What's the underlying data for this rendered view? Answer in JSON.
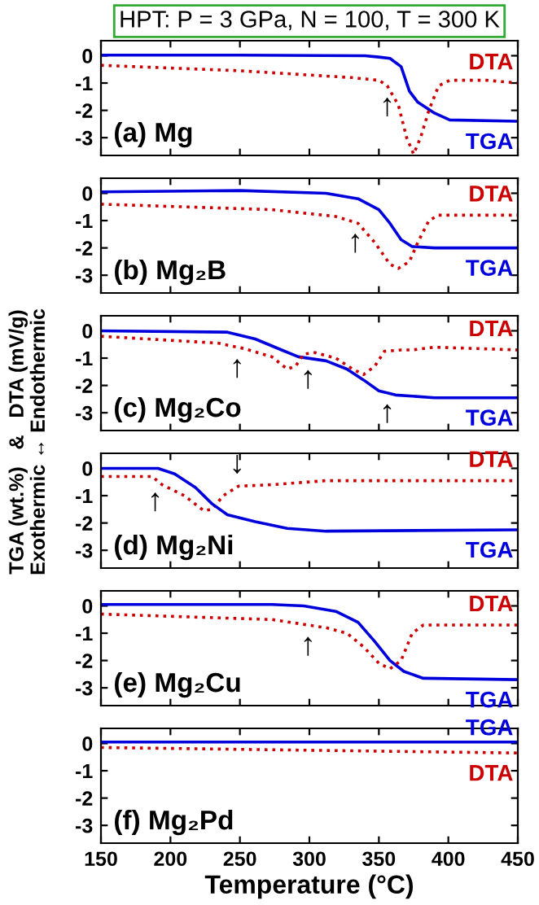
{
  "chart_data": [
    {
      "type": "line",
      "title": "HPT: P = 3 GPa, N = 100, T = 300 K",
      "xlim": [
        150,
        450
      ],
      "xticks": [
        150,
        200,
        250,
        300,
        350,
        400,
        450
      ],
      "ylim": [
        -3.65,
        0.55
      ],
      "yticks": [
        0,
        {
          "value": -1,
          "label": "-1"
        },
        {
          "value": -2,
          "label": "-2"
        },
        {
          "value": -3,
          "label": "-3"
        }
      ],
      "tick_labels": "y",
      "annotations": [
        "(a) Mg",
        {
          "text": "↑",
          "x": 356,
          "y": -1.1
        }
      ],
      "series": [
        {
          "name": "TGA",
          "color": "#0000dd",
          "line_style": "solid",
          "x": [
            150,
            250,
            340,
            350,
            358,
            366,
            372,
            378,
            390,
            401,
            450
          ],
          "values": [
            0.02,
            0.02,
            0.0,
            -0.05,
            -0.1,
            -0.4,
            -1.3,
            -1.7,
            -2.1,
            -2.35,
            -2.4
          ]
        },
        {
          "name": "DTA",
          "color": "#cc0000",
          "line_style": "dotted",
          "x": [
            150,
            250,
            330,
            350,
            356,
            364,
            370,
            375,
            380,
            386,
            393,
            401,
            428,
            450
          ],
          "values": [
            -0.35,
            -0.55,
            -0.8,
            -0.9,
            -1.1,
            -1.8,
            -3.0,
            -3.6,
            -3.0,
            -2.0,
            -1.1,
            -0.9,
            -0.9,
            -1.0
          ]
        }
      ]
    },
    {
      "type": "line",
      "xlim": [
        150,
        450
      ],
      "xticks": [
        150,
        200,
        250,
        300,
        350,
        400,
        450
      ],
      "ylim": [
        -3.65,
        0.55
      ],
      "yticks": [
        0,
        {
          "value": -1,
          "label": "-1"
        },
        {
          "value": -2,
          "label": "-2"
        },
        {
          "value": -3,
          "label": "-3"
        }
      ],
      "tick_labels": "y",
      "annotations": [
        "(b) Mg₂B",
        {
          "text": "↑",
          "x": 333,
          "y": -1.05
        }
      ],
      "series": [
        {
          "name": "TGA",
          "color": "#0000dd",
          "line_style": "solid",
          "x": [
            150,
            250,
            312,
            335,
            350,
            358,
            366,
            374,
            390,
            450
          ],
          "values": [
            0.05,
            0.1,
            0.0,
            -0.2,
            -0.6,
            -1.1,
            -1.7,
            -1.95,
            -2.0,
            -2.0
          ]
        },
        {
          "name": "DTA",
          "color": "#cc0000",
          "line_style": "dotted",
          "x": [
            150,
            273,
            319,
            335,
            347,
            358,
            364,
            372,
            378,
            386,
            393,
            450
          ],
          "values": [
            -0.4,
            -0.6,
            -0.85,
            -1.1,
            -1.8,
            -2.6,
            -2.75,
            -2.5,
            -1.8,
            -1.0,
            -0.8,
            -0.8
          ]
        }
      ]
    },
    {
      "type": "line",
      "xlim": [
        150,
        450
      ],
      "xticks": [
        150,
        200,
        250,
        300,
        350,
        400,
        450
      ],
      "ylim": [
        -3.65,
        0.55
      ],
      "yticks": [
        0,
        {
          "value": -1,
          "label": "-1"
        },
        {
          "value": -2,
          "label": "-2"
        },
        {
          "value": -3,
          "label": "-3"
        }
      ],
      "tick_labels": "y",
      "ylabel": "TGA (wt.%)   &   DTA (mV/g)\nExothermic ↔ Endothermic",
      "annotations": [
        "(c) Mg₂Co",
        {
          "text": "↑",
          "x": 248,
          "y": -0.6
        },
        {
          "text": "↑",
          "x": 299,
          "y": -1.0
        },
        {
          "text": "↑",
          "x": 356,
          "y": -2.25
        }
      ],
      "series": [
        {
          "name": "TGA",
          "color": "#0000dd",
          "line_style": "solid",
          "x": [
            150,
            241,
            261,
            280,
            292,
            312,
            327,
            339,
            350,
            362,
            390,
            450
          ],
          "values": [
            0.0,
            -0.05,
            -0.3,
            -0.7,
            -0.95,
            -1.1,
            -1.4,
            -1.8,
            -2.2,
            -2.35,
            -2.45,
            -2.45
          ]
        },
        {
          "name": "DTA",
          "color": "#cc0000",
          "line_style": "dotted",
          "x": [
            150,
            234,
            253,
            273,
            284,
            290,
            296,
            304,
            319,
            331,
            339,
            347,
            354,
            366,
            374,
            390,
            450
          ],
          "values": [
            -0.2,
            -0.45,
            -0.65,
            -0.95,
            -1.4,
            -1.3,
            -0.85,
            -0.8,
            -1.0,
            -1.4,
            -1.6,
            -1.3,
            -0.75,
            -0.7,
            -0.7,
            -0.6,
            -0.7
          ]
        }
      ]
    },
    {
      "type": "line",
      "xlim": [
        150,
        450
      ],
      "xticks": [
        150,
        200,
        250,
        300,
        350,
        400,
        450
      ],
      "ylim": [
        -3.65,
        0.55
      ],
      "yticks": [
        0,
        {
          "value": -1,
          "label": "-1"
        },
        {
          "value": -2,
          "label": "-2"
        },
        {
          "value": -3,
          "label": "-3"
        }
      ],
      "tick_labels": "y",
      "annotations": [
        "(d) Mg₂Ni",
        {
          "text": "↑",
          "x": 189,
          "y": -0.45
        },
        {
          "text": "↓",
          "x": 248,
          "y": -0.65
        }
      ],
      "series": [
        {
          "name": "DTA",
          "color": "#cc0000",
          "line_style": "dotted",
          "x": [
            150,
            187,
            194,
            210,
            224,
            230,
            238,
            249,
            273,
            312,
            450
          ],
          "values": [
            -0.3,
            -0.3,
            -0.6,
            -1.0,
            -1.55,
            -1.5,
            -1.0,
            -0.65,
            -0.6,
            -0.45,
            -0.45
          ]
        },
        {
          "name": "TGA",
          "color": "#0000dd",
          "line_style": "solid",
          "x": [
            150,
            191,
            203,
            218,
            230,
            241,
            261,
            284,
            312,
            450
          ],
          "values": [
            0.0,
            0.0,
            -0.2,
            -0.7,
            -1.3,
            -1.7,
            -1.95,
            -2.2,
            -2.3,
            -2.25
          ]
        }
      ]
    },
    {
      "type": "line",
      "xlim": [
        150,
        450
      ],
      "xticks": [
        150,
        200,
        250,
        300,
        350,
        400,
        450
      ],
      "ylim": [
        -3.65,
        0.55
      ],
      "yticks": [
        0,
        {
          "value": -1,
          "label": "-1"
        },
        {
          "value": -2,
          "label": "-2"
        },
        {
          "value": -3,
          "label": "-3"
        }
      ],
      "tick_labels": "y",
      "annotations": [
        "(e) Mg₂Cu",
        {
          "text": "↑",
          "x": 299,
          "y": -0.7
        }
      ],
      "series": [
        {
          "name": "TGA",
          "color": "#0000dd",
          "line_style": "solid",
          "x": [
            150,
            273,
            296,
            319,
            335,
            347,
            358,
            368,
            382,
            450
          ],
          "values": [
            0.05,
            0.05,
            0.0,
            -0.2,
            -0.6,
            -1.3,
            -2.0,
            -2.4,
            -2.65,
            -2.7
          ]
        },
        {
          "name": "DTA",
          "color": "#cc0000",
          "line_style": "dotted",
          "x": [
            150,
            273,
            312,
            327,
            339,
            350,
            358,
            366,
            374,
            382,
            450
          ],
          "values": [
            -0.3,
            -0.5,
            -0.8,
            -1.0,
            -1.5,
            -2.1,
            -2.3,
            -2.0,
            -1.0,
            -0.7,
            -0.7
          ]
        }
      ]
    },
    {
      "type": "line",
      "xlim": [
        150,
        450
      ],
      "xticks": [
        150,
        200,
        250,
        300,
        350,
        400,
        450
      ],
      "ylim": [
        -3.65,
        0.55
      ],
      "yticks": [
        0,
        {
          "value": -1,
          "label": "-1"
        },
        {
          "value": -2,
          "label": "-2"
        },
        {
          "value": -3,
          "label": "-3"
        }
      ],
      "xlabel": "Temperature (°C)",
      "annotations": [
        "(f) Mg₂Pd"
      ],
      "series": [
        {
          "name": "TGA",
          "color": "#0000dd",
          "line_style": "solid",
          "x": [
            150,
            450
          ],
          "values": [
            0.05,
            0.05
          ]
        },
        {
          "name": "DTA",
          "color": "#cc0000",
          "line_style": "dotted",
          "x": [
            150,
            450
          ],
          "values": [
            -0.15,
            -0.35
          ]
        }
      ]
    }
  ]
}
